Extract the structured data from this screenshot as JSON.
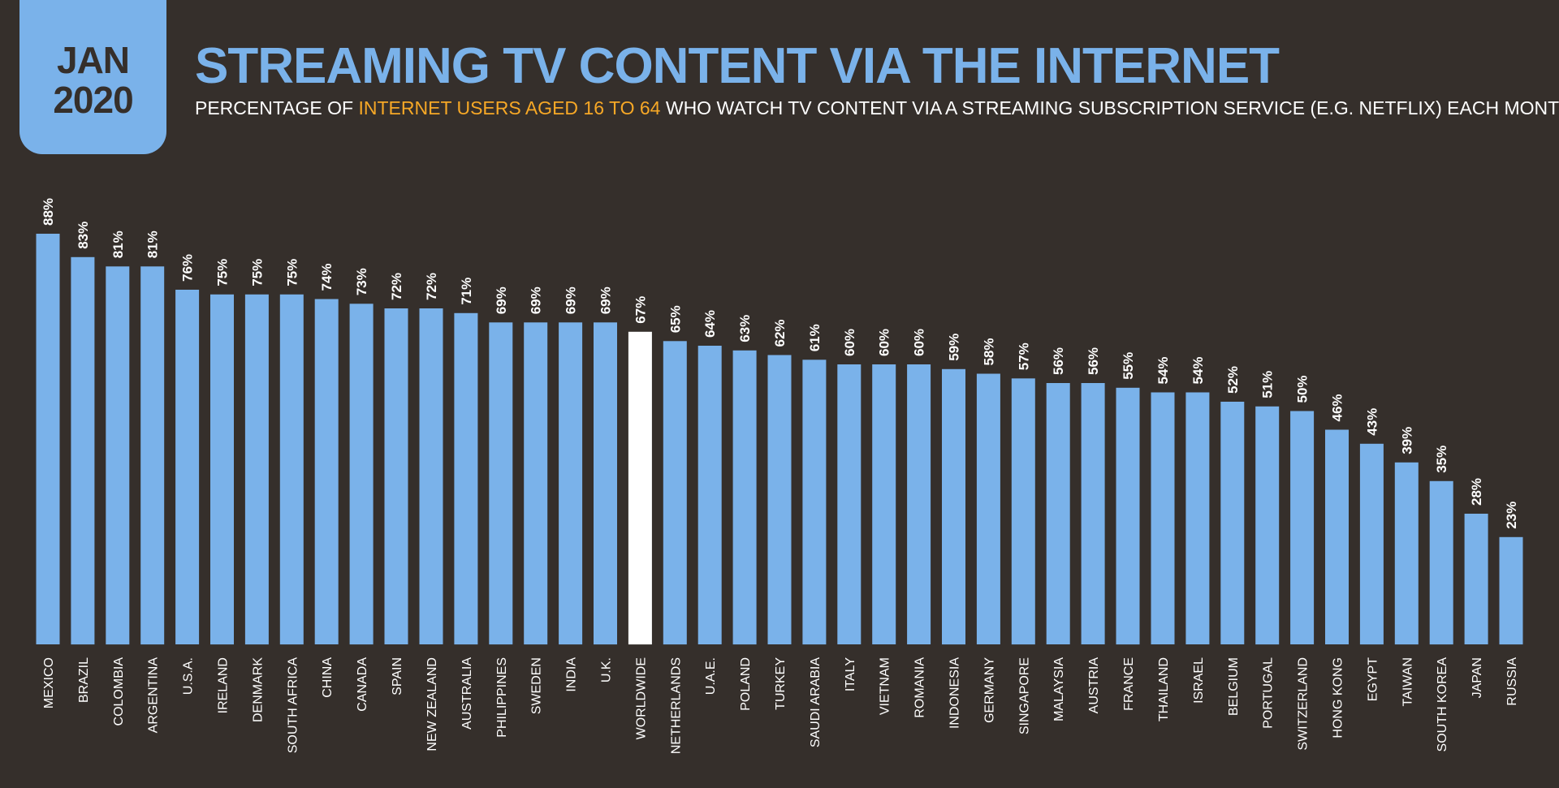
{
  "badge": {
    "month": "JAN",
    "year": "2020"
  },
  "header": {
    "title": "STREAMING TV CONTENT VIA THE INTERNET",
    "subtitle_pre": "PERCENTAGE OF ",
    "subtitle_highlight": "INTERNET USERS AGED 16 TO 64",
    "subtitle_post": " WHO WATCH TV CONTENT VIA A STREAMING SUBSCRIPTION SERVICE (E.G. NETFLIX) EACH MONTH"
  },
  "colors": {
    "background": "#352f2b",
    "bar": "#7ab2ea",
    "bar_highlight": "#ffffff",
    "accent": "#f7a826",
    "text": "#ffffff"
  },
  "chart_data": {
    "type": "bar",
    "title": "STREAMING TV CONTENT VIA THE INTERNET",
    "subtitle": "PERCENTAGE OF INTERNET USERS AGED 16 TO 64 WHO WATCH TV CONTENT VIA A STREAMING SUBSCRIPTION SERVICE (E.G. NETFLIX) EACH MONTH",
    "xlabel": "",
    "ylabel": "",
    "ylim": [
      0,
      100
    ],
    "grid": false,
    "highlight_category": "WORLDWIDE",
    "categories": [
      "MEXICO",
      "BRAZIL",
      "COLOMBIA",
      "ARGENTINA",
      "U.S.A.",
      "IRELAND",
      "DENMARK",
      "SOUTH AFRICA",
      "CHINA",
      "CANADA",
      "SPAIN",
      "NEW ZEALAND",
      "AUSTRALIA",
      "PHILIPPINES",
      "SWEDEN",
      "INDIA",
      "U.K.",
      "WORLDWIDE",
      "NETHERLANDS",
      "U.A.E.",
      "POLAND",
      "TURKEY",
      "SAUDI ARABIA",
      "ITALY",
      "VIETNAM",
      "ROMANIA",
      "INDONESIA",
      "GERMANY",
      "SINGAPORE",
      "MALAYSIA",
      "AUSTRIA",
      "FRANCE",
      "THAILAND",
      "ISRAEL",
      "BELGIUM",
      "PORTUGAL",
      "SWITZERLAND",
      "HONG KONG",
      "EGYPT",
      "TAIWAN",
      "SOUTH KOREA",
      "JAPAN",
      "RUSSIA"
    ],
    "values": [
      88,
      83,
      81,
      81,
      76,
      75,
      75,
      75,
      74,
      73,
      72,
      72,
      71,
      69,
      69,
      69,
      69,
      67,
      65,
      64,
      63,
      62,
      61,
      60,
      60,
      60,
      59,
      58,
      57,
      56,
      56,
      55,
      54,
      54,
      52,
      51,
      50,
      46,
      43,
      39,
      35,
      28,
      23
    ],
    "labels": [
      "88%",
      "83%",
      "81%",
      "81%",
      "76%",
      "75%",
      "75%",
      "75%",
      "74%",
      "73%",
      "72%",
      "72%",
      "71%",
      "69%",
      "69%",
      "69%",
      "69%",
      "67%",
      "65%",
      "64%",
      "63%",
      "62%",
      "61%",
      "60%",
      "60%",
      "60%",
      "59%",
      "58%",
      "57%",
      "56%",
      "56%",
      "55%",
      "54%",
      "54%",
      "52%",
      "51%",
      "50%",
      "46%",
      "43%",
      "39%",
      "35%",
      "28%",
      "23%"
    ]
  }
}
